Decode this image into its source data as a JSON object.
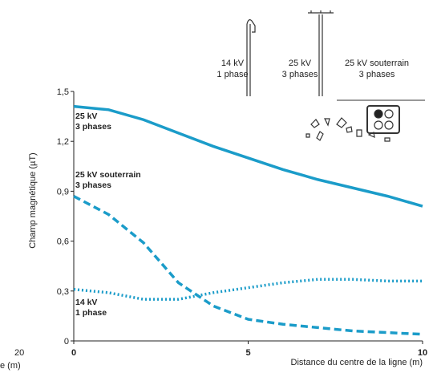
{
  "chart_data": {
    "type": "line",
    "y_label": "Champ magnétique (µT)",
    "x_label": "Distance du centre de la ligne (m)",
    "headers": [
      [
        "14 kV",
        "1 phase"
      ],
      [
        "25 kV",
        "3 phases"
      ],
      [
        "25 kV souterrain",
        "3 phases"
      ]
    ],
    "fragments": [
      "20",
      "e (m)"
    ],
    "x": [
      0,
      1,
      2,
      3,
      4,
      5,
      6,
      7,
      8,
      9,
      10
    ],
    "xlim": [
      0,
      10
    ],
    "xticks": [
      0,
      5,
      10
    ],
    "ylim": [
      0,
      1.5
    ],
    "yticks": [
      {
        "value": 0,
        "label": "0"
      },
      {
        "value": 0.3,
        "label": "0,3"
      },
      {
        "value": 0.6,
        "label": "0,6"
      },
      {
        "value": 0.9,
        "label": "0,9"
      },
      {
        "value": 1.2,
        "label": "1,2"
      },
      {
        "value": 1.5,
        "label": "1,5"
      }
    ],
    "series": [
      {
        "name": [
          "25 kV",
          "3 phases"
        ],
        "color": "#1b9cc9",
        "dash": "solid",
        "values": [
          1.41,
          1.39,
          1.33,
          1.25,
          1.17,
          1.1,
          1.03,
          0.97,
          0.92,
          0.87,
          0.81
        ]
      },
      {
        "name": [
          "25 kV souterrain",
          "3 phases"
        ],
        "color": "#1b9cc9",
        "dash": "dashed",
        "values": [
          0.87,
          0.76,
          0.59,
          0.35,
          0.21,
          0.13,
          0.1,
          0.08,
          0.06,
          0.05,
          0.04
        ]
      },
      {
        "name": [
          "14 kV",
          "1 phase"
        ],
        "color": "#1b9cc9",
        "dash": "dotted",
        "values": [
          0.31,
          0.29,
          0.25,
          0.25,
          0.29,
          0.32,
          0.35,
          0.37,
          0.37,
          0.36,
          0.36
        ]
      }
    ]
  }
}
